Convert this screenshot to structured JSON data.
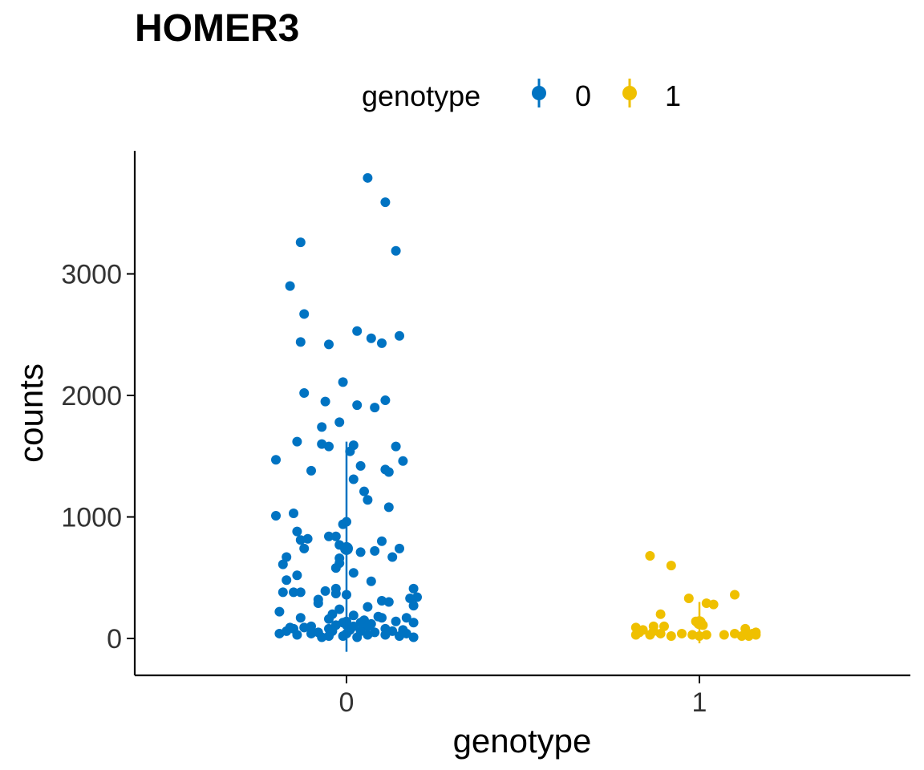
{
  "chart_data": {
    "type": "scatter",
    "title": "HOMER3",
    "xlabel": "genotype",
    "ylabel": "counts",
    "categories": [
      "0",
      "1"
    ],
    "ylim": [
      -300,
      4000
    ],
    "yticks": [
      0,
      1000,
      2000,
      3000
    ],
    "grid": false,
    "legend": {
      "title": "genotype",
      "position": "top",
      "entries": [
        "0",
        "1"
      ]
    },
    "colors": {
      "0": "#0073C2",
      "1": "#EFC000"
    },
    "series": [
      {
        "name": "0",
        "category": "0",
        "summary": {
          "mean": 740,
          "lower": -110,
          "upper": 1620
        },
        "points": [
          {
            "x": 0.06,
            "y": 3790
          },
          {
            "x": 0.11,
            "y": 3590
          },
          {
            "x": -0.13,
            "y": 3260
          },
          {
            "x": 0.14,
            "y": 3190
          },
          {
            "x": -0.16,
            "y": 2900
          },
          {
            "x": -0.12,
            "y": 2670
          },
          {
            "x": 0.03,
            "y": 2530
          },
          {
            "x": 0.15,
            "y": 2490
          },
          {
            "x": 0.07,
            "y": 2470
          },
          {
            "x": -0.13,
            "y": 2440
          },
          {
            "x": 0.1,
            "y": 2430
          },
          {
            "x": -0.05,
            "y": 2420
          },
          {
            "x": -0.01,
            "y": 2110
          },
          {
            "x": -0.12,
            "y": 2020
          },
          {
            "x": 0.11,
            "y": 1960
          },
          {
            "x": -0.06,
            "y": 1950
          },
          {
            "x": 0.03,
            "y": 1920
          },
          {
            "x": 0.08,
            "y": 1900
          },
          {
            "x": -0.02,
            "y": 1780
          },
          {
            "x": -0.07,
            "y": 1740
          },
          {
            "x": -0.14,
            "y": 1620
          },
          {
            "x": -0.07,
            "y": 1600
          },
          {
            "x": 0.02,
            "y": 1590
          },
          {
            "x": 0.14,
            "y": 1580
          },
          {
            "x": -0.05,
            "y": 1580
          },
          {
            "x": 0.01,
            "y": 1540
          },
          {
            "x": -0.2,
            "y": 1470
          },
          {
            "x": 0.16,
            "y": 1460
          },
          {
            "x": 0.04,
            "y": 1420
          },
          {
            "x": 0.11,
            "y": 1390
          },
          {
            "x": -0.1,
            "y": 1380
          },
          {
            "x": 0.12,
            "y": 1370
          },
          {
            "x": 0.02,
            "y": 1310
          },
          {
            "x": 0.05,
            "y": 1210
          },
          {
            "x": 0.06,
            "y": 1140
          },
          {
            "x": 0.12,
            "y": 1080
          },
          {
            "x": -0.15,
            "y": 1030
          },
          {
            "x": -0.2,
            "y": 1010
          },
          {
            "x": 0.0,
            "y": 960
          },
          {
            "x": -0.01,
            "y": 940
          },
          {
            "x": -0.14,
            "y": 880
          },
          {
            "x": -0.05,
            "y": 840
          },
          {
            "x": -0.03,
            "y": 840
          },
          {
            "x": -0.11,
            "y": 820
          },
          {
            "x": -0.13,
            "y": 810
          },
          {
            "x": 0.1,
            "y": 800
          },
          {
            "x": -0.02,
            "y": 770
          },
          {
            "x": 0.0,
            "y": 750
          },
          {
            "x": 0.15,
            "y": 740
          },
          {
            "x": -0.12,
            "y": 740
          },
          {
            "x": 0.0,
            "y": 730
          },
          {
            "x": 0.08,
            "y": 720
          },
          {
            "x": 0.04,
            "y": 710
          },
          {
            "x": 0.13,
            "y": 670
          },
          {
            "x": -0.17,
            "y": 670
          },
          {
            "x": -0.02,
            "y": 660
          },
          {
            "x": -0.02,
            "y": 620
          },
          {
            "x": -0.18,
            "y": 610
          },
          {
            "x": -0.03,
            "y": 580
          },
          {
            "x": 0.02,
            "y": 540
          },
          {
            "x": -0.14,
            "y": 520
          },
          {
            "x": -0.17,
            "y": 480
          },
          {
            "x": 0.07,
            "y": 470
          },
          {
            "x": 0.19,
            "y": 410
          },
          {
            "x": -0.03,
            "y": 410
          },
          {
            "x": -0.06,
            "y": 390
          },
          {
            "x": -0.18,
            "y": 380
          },
          {
            "x": -0.15,
            "y": 380
          },
          {
            "x": -0.13,
            "y": 380
          },
          {
            "x": -0.03,
            "y": 370
          },
          {
            "x": 0.0,
            "y": 360
          },
          {
            "x": 0.2,
            "y": 340
          },
          {
            "x": 0.18,
            "y": 330
          },
          {
            "x": -0.08,
            "y": 320
          },
          {
            "x": 0.1,
            "y": 310
          },
          {
            "x": 0.12,
            "y": 300
          },
          {
            "x": -0.08,
            "y": 290
          },
          {
            "x": 0.19,
            "y": 270
          },
          {
            "x": 0.06,
            "y": 260
          },
          {
            "x": -0.02,
            "y": 240
          },
          {
            "x": -0.19,
            "y": 220
          },
          {
            "x": -0.04,
            "y": 200
          },
          {
            "x": 0.02,
            "y": 190
          },
          {
            "x": 0.09,
            "y": 180
          },
          {
            "x": -0.13,
            "y": 170
          },
          {
            "x": 0.1,
            "y": 170
          },
          {
            "x": 0.17,
            "y": 170
          },
          {
            "x": -0.05,
            "y": 160
          },
          {
            "x": 0.05,
            "y": 150
          },
          {
            "x": 0.0,
            "y": 140
          },
          {
            "x": 0.14,
            "y": 140
          },
          {
            "x": -0.01,
            "y": 130
          },
          {
            "x": 0.04,
            "y": 130
          },
          {
            "x": 0.19,
            "y": 130
          },
          {
            "x": 0.07,
            "y": 120
          },
          {
            "x": 0.0,
            "y": 110
          },
          {
            "x": -0.03,
            "y": 110
          },
          {
            "x": 0.02,
            "y": 100
          },
          {
            "x": -0.1,
            "y": 100
          },
          {
            "x": 0.06,
            "y": 100
          },
          {
            "x": -0.16,
            "y": 90
          },
          {
            "x": -0.12,
            "y": 90
          },
          {
            "x": -0.05,
            "y": 80
          },
          {
            "x": -0.15,
            "y": 80
          },
          {
            "x": 0.11,
            "y": 80
          },
          {
            "x": 0.01,
            "y": 70
          },
          {
            "x": 0.16,
            "y": 70
          },
          {
            "x": -0.17,
            "y": 60
          },
          {
            "x": -0.04,
            "y": 60
          },
          {
            "x": 0.04,
            "y": 60
          },
          {
            "x": 0.13,
            "y": 60
          },
          {
            "x": -0.08,
            "y": 50
          },
          {
            "x": 0.08,
            "y": 50
          },
          {
            "x": -0.19,
            "y": 40
          },
          {
            "x": 0.0,
            "y": 40
          },
          {
            "x": 0.17,
            "y": 40
          },
          {
            "x": -0.1,
            "y": 40
          },
          {
            "x": -0.14,
            "y": 30
          },
          {
            "x": 0.06,
            "y": 30
          },
          {
            "x": 0.11,
            "y": 30
          },
          {
            "x": -0.05,
            "y": 20
          },
          {
            "x": -0.01,
            "y": 20
          },
          {
            "x": 0.15,
            "y": 20
          },
          {
            "x": 0.19,
            "y": 10
          },
          {
            "x": -0.07,
            "y": 10
          },
          {
            "x": 0.03,
            "y": 10
          }
        ]
      },
      {
        "name": "1",
        "category": "1",
        "summary": {
          "mean": 130,
          "lower": -40,
          "upper": 300
        },
        "points": [
          {
            "x": -0.14,
            "y": 680
          },
          {
            "x": -0.08,
            "y": 600
          },
          {
            "x": 0.1,
            "y": 360
          },
          {
            "x": -0.03,
            "y": 330
          },
          {
            "x": 0.02,
            "y": 290
          },
          {
            "x": 0.04,
            "y": 280
          },
          {
            "x": -0.11,
            "y": 200
          },
          {
            "x": -0.01,
            "y": 140
          },
          {
            "x": 0.0,
            "y": 120
          },
          {
            "x": 0.01,
            "y": 110
          },
          {
            "x": -0.1,
            "y": 100
          },
          {
            "x": -0.13,
            "y": 100
          },
          {
            "x": -0.18,
            "y": 90
          },
          {
            "x": 0.13,
            "y": 80
          },
          {
            "x": -0.16,
            "y": 70
          },
          {
            "x": -0.13,
            "y": 60
          },
          {
            "x": 0.16,
            "y": 50
          },
          {
            "x": -0.17,
            "y": 50
          },
          {
            "x": -0.11,
            "y": 40
          },
          {
            "x": -0.05,
            "y": 40
          },
          {
            "x": 0.1,
            "y": 40
          },
          {
            "x": 0.15,
            "y": 40
          },
          {
            "x": -0.18,
            "y": 30
          },
          {
            "x": -0.14,
            "y": 30
          },
          {
            "x": -0.02,
            "y": 30
          },
          {
            "x": 0.02,
            "y": 30
          },
          {
            "x": 0.07,
            "y": 30
          },
          {
            "x": 0.12,
            "y": 20
          },
          {
            "x": 0.16,
            "y": 30
          },
          {
            "x": 0.0,
            "y": 20
          },
          {
            "x": -0.08,
            "y": 20
          },
          {
            "x": 0.14,
            "y": 20
          }
        ]
      }
    ]
  }
}
